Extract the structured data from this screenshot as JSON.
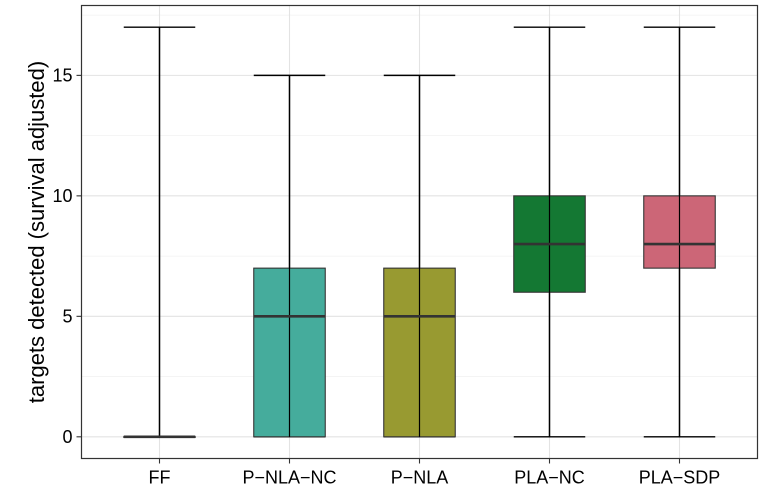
{
  "chart_data": {
    "type": "boxplot",
    "title": "",
    "xlabel": "",
    "ylabel": "targets detected (survival adjusted)",
    "ylim": [
      -0.9,
      17.9
    ],
    "yticks": [
      0,
      5,
      10,
      15
    ],
    "ytick_labels": [
      "0",
      "5",
      "10",
      "15"
    ],
    "grid": true,
    "legend": "none",
    "categories": [
      "FF",
      "P−NLA−NC",
      "P−NLA",
      "PLA−NC",
      "PLA−SDP"
    ],
    "boxes": [
      {
        "category": "FF",
        "min": 0,
        "q1": 0,
        "median": 0,
        "q3": 0,
        "max": 17,
        "color": "#ffffff"
      },
      {
        "category": "P−NLA−NC",
        "min": 0,
        "q1": 0,
        "median": 5,
        "q3": 7,
        "max": 15,
        "color": "#45ac9c"
      },
      {
        "category": "P−NLA",
        "min": 0,
        "q1": 0,
        "median": 5,
        "q3": 7,
        "max": 15,
        "color": "#989a31"
      },
      {
        "category": "PLA−NC",
        "min": 0,
        "q1": 6,
        "median": 8,
        "q3": 10,
        "max": 17,
        "color": "#147833"
      },
      {
        "category": "PLA−SDP",
        "min": 0,
        "q1": 7,
        "median": 8,
        "q3": 10,
        "max": 17,
        "color": "#cc6677"
      }
    ]
  }
}
